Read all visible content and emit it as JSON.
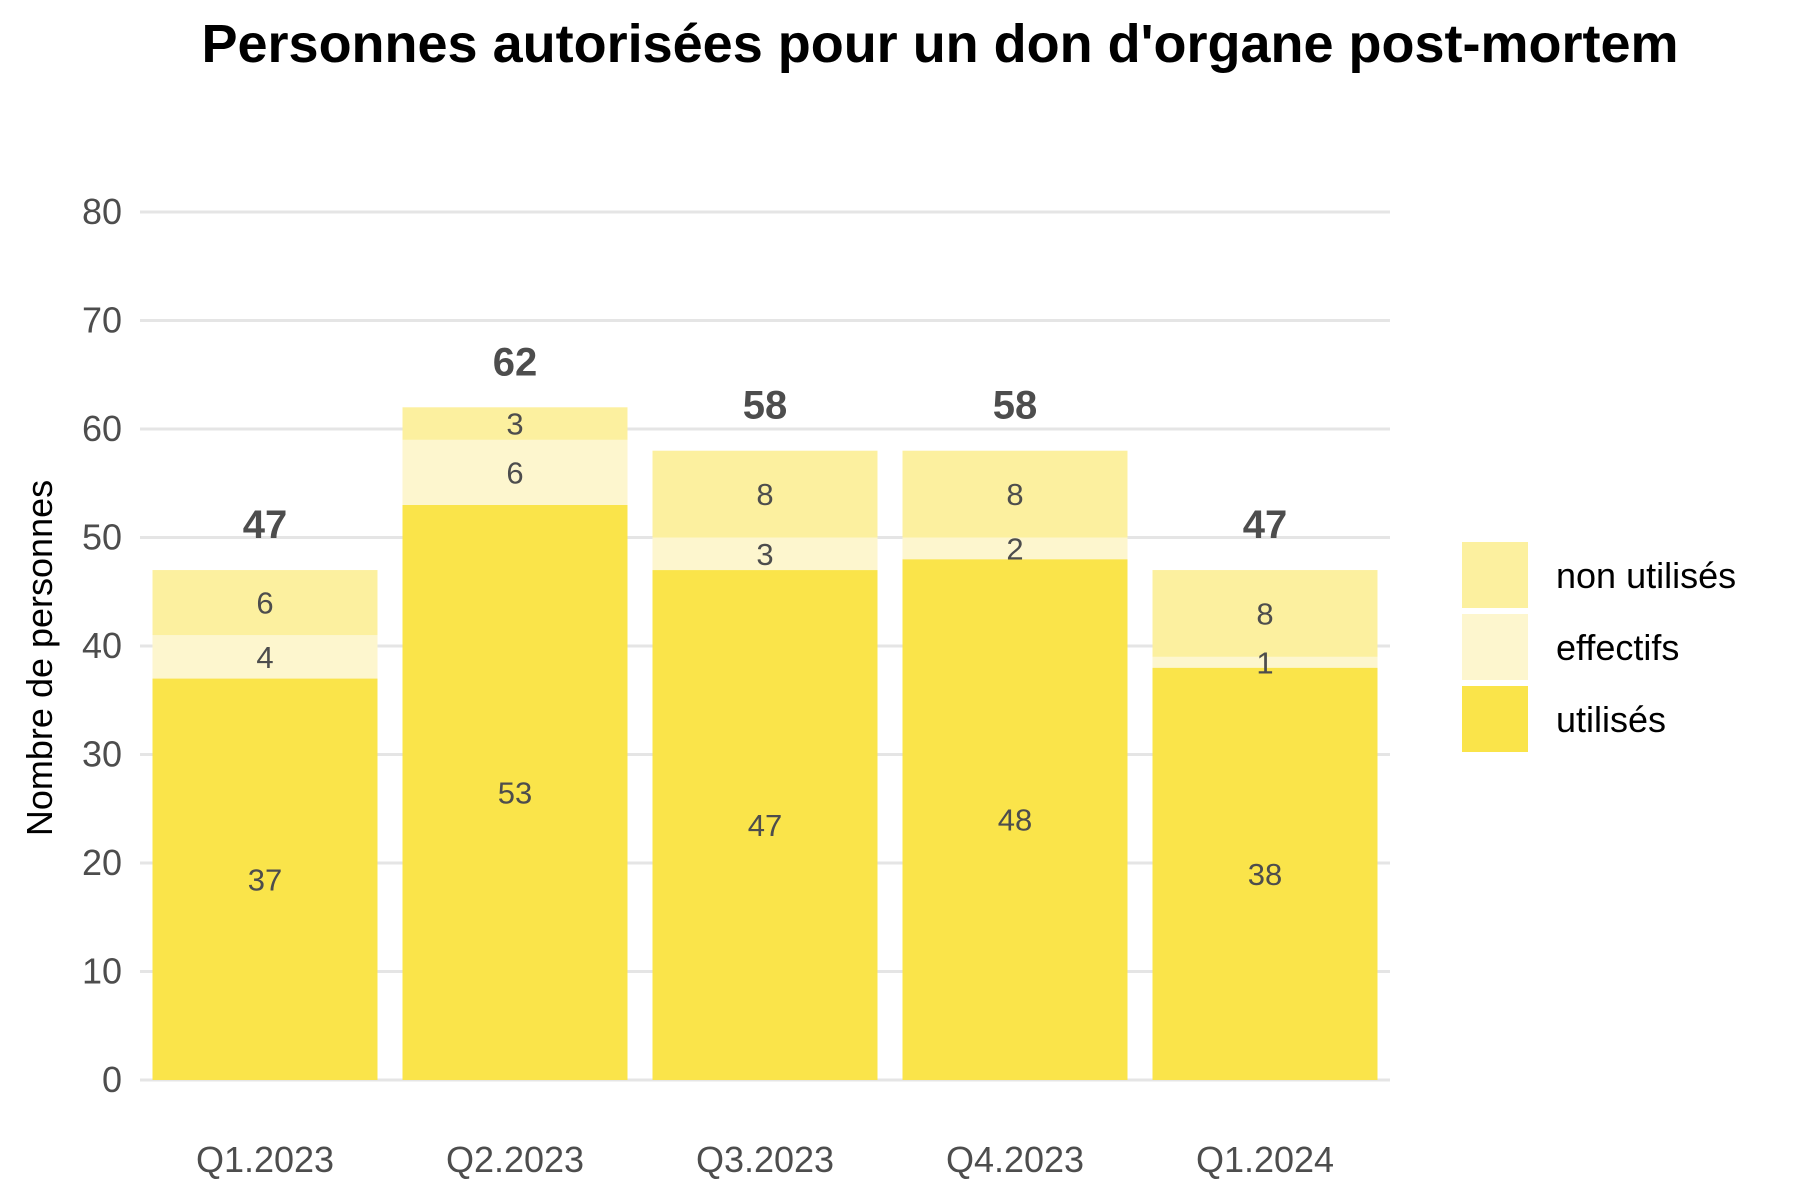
{
  "chart_data": {
    "type": "bar",
    "stacked": true,
    "title": "Personnes autorisées pour un don d'organe post-mortem",
    "xlabel": "",
    "ylabel": "Nombre de personnes",
    "ylim": [
      0,
      80
    ],
    "yticks": [
      0,
      10,
      20,
      30,
      40,
      50,
      60,
      70,
      80
    ],
    "categories": [
      "Q1.2023",
      "Q2.2023",
      "Q3.2023",
      "Q4.2023",
      "Q1.2024"
    ],
    "series": [
      {
        "name": "utilisés",
        "color": "#fae44a",
        "values": [
          37,
          53,
          47,
          48,
          38
        ]
      },
      {
        "name": "effectifs",
        "color": "#fdf6ce",
        "values": [
          4,
          6,
          3,
          2,
          1
        ]
      },
      {
        "name": "non utilisés",
        "color": "#fcf09f",
        "values": [
          6,
          3,
          8,
          8,
          8
        ]
      }
    ],
    "totals": [
      47,
      62,
      58,
      58,
      47
    ],
    "legend_order": [
      "non utilisés",
      "effectifs",
      "utilisés"
    ],
    "legend_position": "right",
    "grid": "horizontal"
  }
}
